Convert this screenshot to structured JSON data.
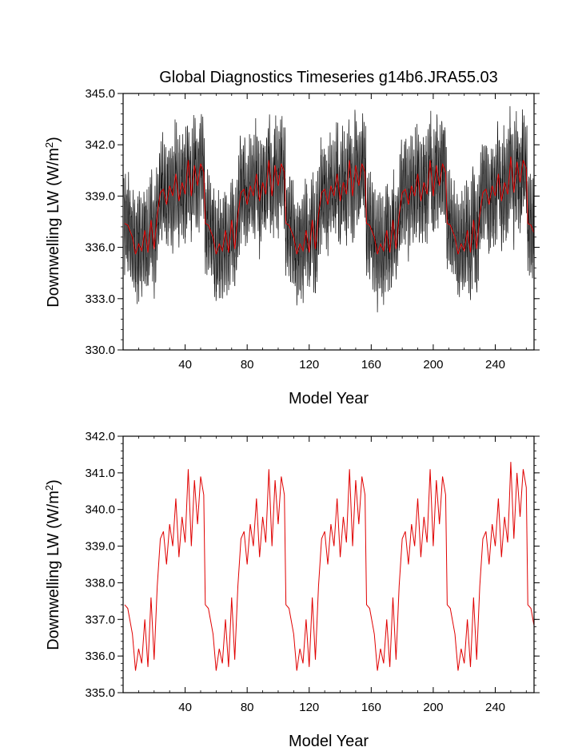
{
  "figure": {
    "title": "Global Diagnostics Timeseries g14b6.JRA55.03"
  },
  "chart_data": [
    {
      "type": "line",
      "xlabel": "Model Year",
      "ylabel": "Downwelling LW (W/m",
      "ylabel_sup": "2",
      "ylabel_close": ")",
      "xlim": [
        0,
        265
      ],
      "ylim": [
        330,
        345
      ],
      "xticks": [
        40,
        80,
        120,
        160,
        200,
        240
      ],
      "xtick_labels": [
        "40",
        "80",
        "120",
        "160",
        "200",
        "240"
      ],
      "yticks": [
        330,
        333,
        336,
        339,
        342,
        345
      ],
      "ytick_labels": [
        "330.0",
        "333.0",
        "336.0",
        "339.0",
        "342.0",
        "345.0"
      ],
      "grid": false,
      "series": [
        {
          "color": "#000000",
          "kind": "monthly",
          "description_values": "dense monthly values oscillating around the annual mean with seasonal amplitude about ±3 W/m2"
        },
        {
          "color": "#e00000",
          "kind": "annual"
        }
      ]
    },
    {
      "type": "line",
      "xlabel": "Model Year",
      "ylabel": "Downwelling LW (W/m",
      "ylabel_sup": "2",
      "ylabel_close": ")",
      "xlim": [
        0,
        265
      ],
      "ylim": [
        335,
        342
      ],
      "xticks": [
        40,
        80,
        120,
        160,
        200,
        240
      ],
      "xtick_labels": [
        "40",
        "80",
        "120",
        "160",
        "200",
        "240"
      ],
      "yticks": [
        335,
        336,
        337,
        338,
        339,
        340,
        341,
        342
      ],
      "ytick_labels": [
        "335.0",
        "336.0",
        "337.0",
        "338.0",
        "339.0",
        "340.0",
        "341.0",
        "342.0"
      ],
      "grid": false,
      "series": [
        {
          "color": "#e00000",
          "kind": "annual"
        }
      ],
      "cycle_keypoints": {
        "x": [
          1,
          3,
          6,
          8,
          10,
          12,
          14,
          16,
          18,
          20,
          22,
          24,
          26,
          28,
          30,
          32,
          34,
          36,
          38,
          40,
          42,
          44,
          46,
          48,
          50,
          52,
          53,
          55,
          57,
          59
        ],
        "y": [
          337.4,
          337.3,
          336.6,
          335.6,
          336.2,
          335.8,
          337.0,
          335.7,
          337.6,
          335.9,
          337.9,
          339.2,
          339.4,
          338.5,
          339.6,
          339.0,
          340.3,
          338.7,
          339.8,
          339.1,
          341.1,
          339.0,
          340.8,
          339.6,
          340.9,
          340.4,
          337.8,
          337.0,
          336.1,
          335.2
        ]
      },
      "cycle_period_years": 52,
      "cycle_count": 5
    }
  ]
}
